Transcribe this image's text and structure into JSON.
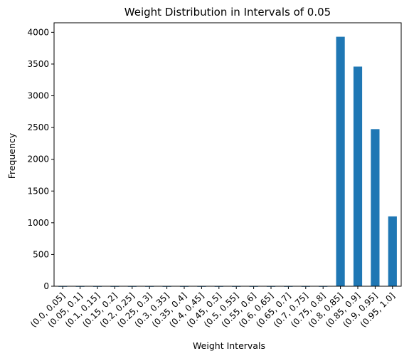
{
  "chart_data": {
    "type": "bar",
    "title": "Weight Distribution in Intervals of 0.05",
    "xlabel": "Weight Intervals",
    "ylabel": "Frequency",
    "categories": [
      "(0.0, 0.05]",
      "(0.05, 0.1]",
      "(0.1, 0.15]",
      "(0.15, 0.2]",
      "(0.2, 0.25]",
      "(0.25, 0.3]",
      "(0.3, 0.35]",
      "(0.35, 0.4]",
      "(0.4, 0.45]",
      "(0.45, 0.5]",
      "(0.5, 0.55]",
      "(0.55, 0.6]",
      "(0.6, 0.65]",
      "(0.65, 0.7]",
      "(0.7, 0.75]",
      "(0.75, 0.8]",
      "(0.8, 0.85]",
      "(0.85, 0.9]",
      "(0.9, 0.95]",
      "(0.95, 1.0]"
    ],
    "values": [
      0,
      0,
      0,
      0,
      0,
      0,
      0,
      0,
      0,
      0,
      0,
      0,
      0,
      0,
      0,
      0,
      3930,
      3460,
      2475,
      1100
    ],
    "ylim": [
      0,
      4150
    ],
    "yticks": [
      0,
      500,
      1000,
      1500,
      2000,
      2500,
      3000,
      3500,
      4000
    ],
    "bar_color": "#1f77b4",
    "grid": false,
    "legend": false
  }
}
